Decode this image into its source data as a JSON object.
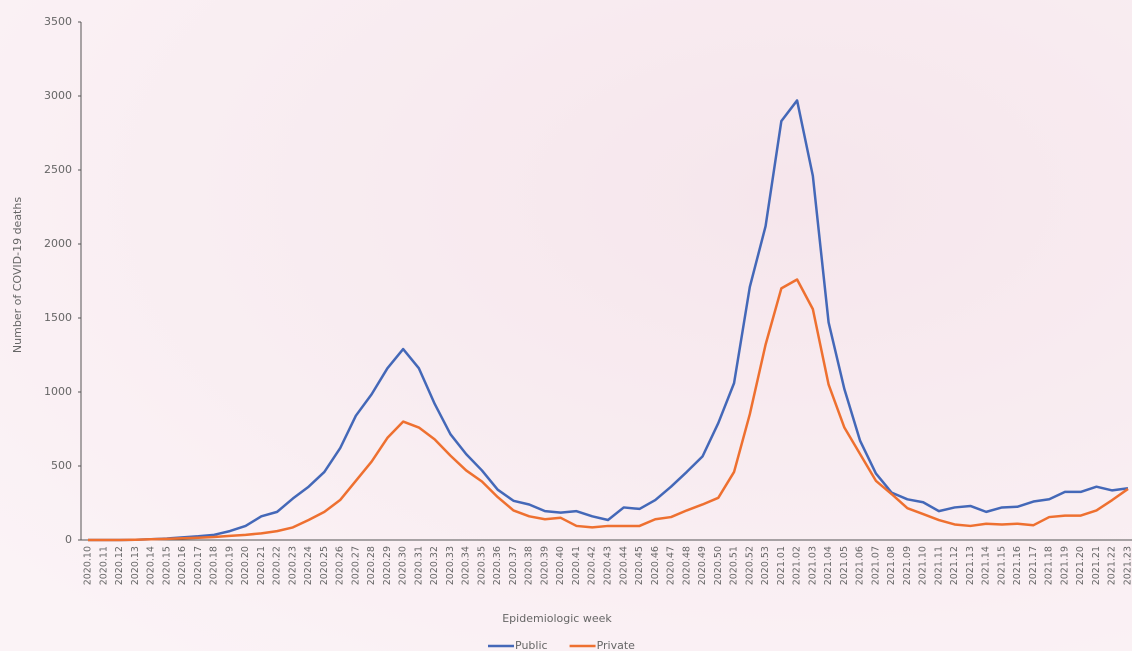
{
  "chart_data": {
    "type": "line",
    "y_label": "Number of COVID-19 deaths",
    "x_label": "Epidemiologic week",
    "categories": [
      "2020.10",
      "2020.11",
      "2020.12",
      "2020.13",
      "2020.14",
      "2020.15",
      "2020.16",
      "2020.17",
      "2020.18",
      "2020.19",
      "2020.20",
      "2020.21",
      "2020.22",
      "2020.23",
      "2020.24",
      "2020.25",
      "2020.26",
      "2020.27",
      "2020.28",
      "2020.29",
      "2020.30",
      "2020.31",
      "2020.32",
      "2020.33",
      "2020.34",
      "2020.35",
      "2020.36",
      "2020.37",
      "2020.38",
      "2020.39",
      "2020.40",
      "2020.41",
      "2020.42",
      "2020.43",
      "2020.44",
      "2020.45",
      "2020.46",
      "2020.47",
      "2020.48",
      "2020.49",
      "2020.50",
      "2020.51",
      "2020.52",
      "2020.53",
      "2021.01",
      "2021.02",
      "2021.03",
      "2021.04",
      "2021.05",
      "2021.06",
      "2021.07",
      "2021.08",
      "2021.09",
      "2021.10",
      "2021.11",
      "2021.12",
      "2021.13",
      "2021.14",
      "2021.15",
      "2021.16",
      "2021.17",
      "2021.18",
      "2021.19",
      "2021.20",
      "2021.21",
      "2021.22",
      "2021.23"
    ],
    "series": [
      {
        "name": "Public",
        "color": "#4468b8",
        "values": [
          0,
          0,
          0,
          2,
          5,
          10,
          18,
          25,
          35,
          60,
          95,
          160,
          190,
          280,
          360,
          460,
          620,
          840,
          985,
          1160,
          1290,
          1160,
          920,
          715,
          580,
          470,
          340,
          265,
          240,
          195,
          185,
          195,
          160,
          135,
          220,
          210,
          270,
          360,
          460,
          565,
          790,
          1060,
          1710,
          2120,
          2830,
          2970,
          2460,
          1470,
          1020,
          670,
          450,
          320,
          275,
          255,
          195,
          220,
          230,
          190,
          220,
          225,
          260,
          275,
          325,
          325,
          360,
          335,
          350
        ]
      },
      {
        "name": "Private",
        "color": "#ee7030",
        "values": [
          0,
          0,
          0,
          2,
          5,
          8,
          12,
          15,
          20,
          28,
          35,
          45,
          60,
          85,
          135,
          190,
          270,
          400,
          530,
          690,
          800,
          760,
          680,
          570,
          470,
          395,
          290,
          200,
          160,
          140,
          150,
          95,
          85,
          95,
          95,
          95,
          140,
          155,
          200,
          240,
          285,
          460,
          850,
          1320,
          1700,
          1760,
          1560,
          1050,
          760,
          580,
          400,
          310,
          215,
          175,
          135,
          105,
          95,
          110,
          105,
          110,
          100,
          155,
          165,
          165,
          200,
          270,
          345
        ]
      }
    ],
    "ylim": [
      0,
      3500
    ],
    "yticks": [
      0,
      500,
      1000,
      1500,
      2000,
      2500,
      3000,
      3500
    ],
    "legend": "bottom"
  }
}
